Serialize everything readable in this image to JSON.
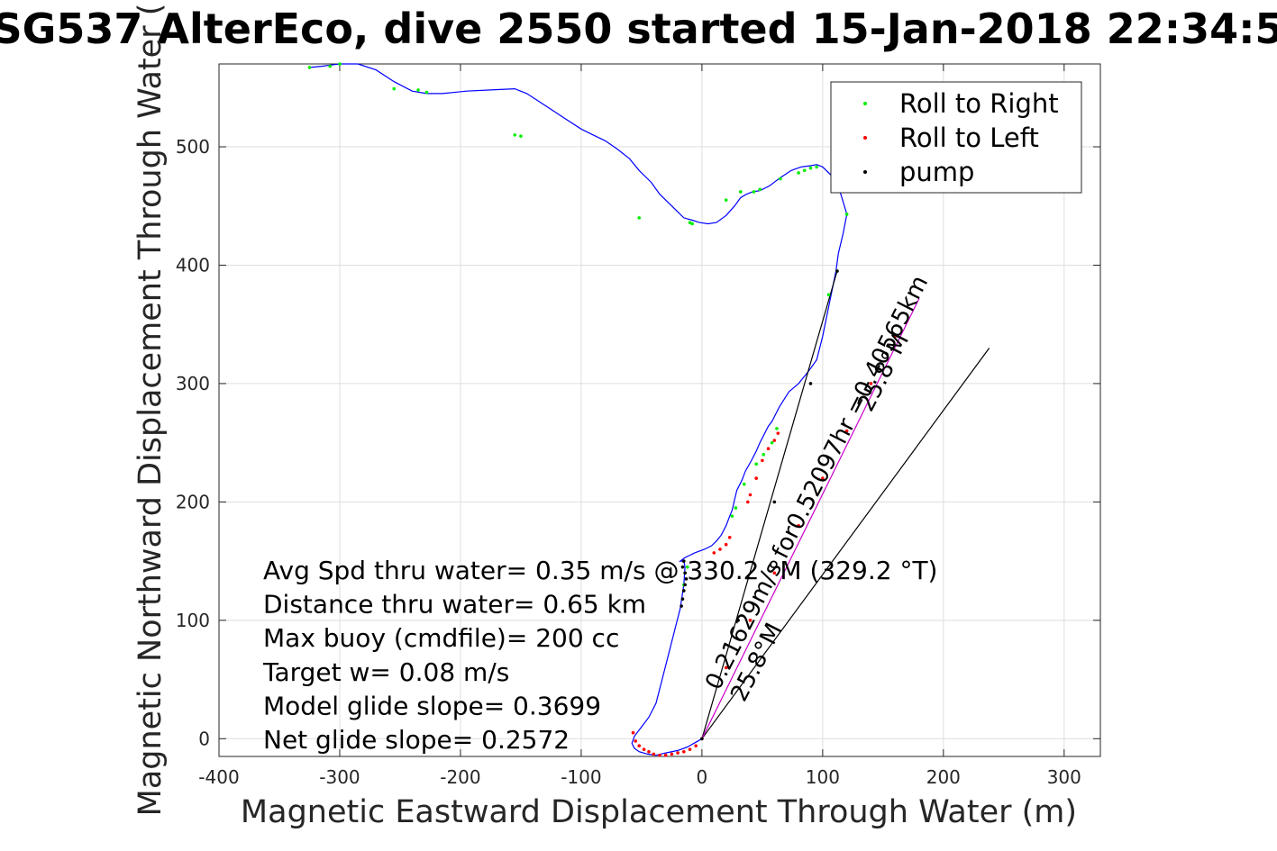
{
  "chart_data": {
    "type": "scatter",
    "title": "SG537 AlterEco, dive 2550 started 15-Jan-2018 22:34:5",
    "xlabel": "Magnetic Eastward Displacement Through Water (m)",
    "ylabel": "Magnetic Northward Displacement Through Water (",
    "xlim": [
      -400,
      330
    ],
    "ylim": [
      -15,
      570
    ],
    "xticks": [
      -400,
      -300,
      -200,
      -100,
      0,
      100,
      200,
      300
    ],
    "yticks": [
      0,
      100,
      200,
      300,
      400,
      500
    ],
    "xtick_labels": [
      "-400",
      "-300",
      "-200",
      "-100",
      "0",
      "100",
      "200",
      "300"
    ],
    "ytick_labels": [
      "0",
      "100",
      "200",
      "300",
      "400",
      "500"
    ],
    "grid": true,
    "legend": {
      "placement": "top-right",
      "entries": [
        {
          "label": "Roll to Right",
          "color": "#00ee00"
        },
        {
          "label": "Roll to Left",
          "color": "#ff0000"
        },
        {
          "label": "pump",
          "color": "#000000"
        }
      ]
    },
    "series": [
      {
        "name": "",
        "kind": "track",
        "color": "#0000ff",
        "x": [
          0,
          -5,
          -12,
          -20,
          -30,
          -38,
          -45,
          -52,
          -56,
          -58,
          -56,
          -50,
          -44,
          -38,
          -33,
          -28,
          -23,
          -18,
          -15,
          -14,
          -15,
          -18,
          -14,
          -6,
          2,
          8,
          12,
          16,
          20,
          23,
          25,
          26,
          27,
          29,
          33,
          36,
          41,
          45,
          48,
          51,
          53,
          55,
          58,
          61,
          64,
          72,
          80,
          88,
          95,
          100,
          104,
          108,
          111,
          113,
          117,
          120,
          115,
          108,
          100,
          95,
          90,
          82,
          74,
          65,
          56,
          48,
          42,
          37,
          32,
          27,
          20,
          12,
          5,
          -2,
          -8,
          -15,
          -20,
          -25,
          -30,
          -35,
          -42,
          -52,
          -60,
          -70,
          -80,
          -90,
          -100,
          -115,
          -130,
          -145,
          -155,
          -175,
          -195,
          -215,
          -228,
          -240,
          -255,
          -270,
          -285,
          -300,
          -308,
          -315,
          -325
        ],
        "y": [
          0,
          -3,
          -7,
          -10,
          -12,
          -14,
          -13,
          -11,
          -8,
          -4,
          2,
          10,
          18,
          30,
          50,
          70,
          90,
          110,
          130,
          145,
          150,
          150,
          153,
          157,
          160,
          163,
          167,
          172,
          180,
          188,
          193,
          197,
          202,
          210,
          218,
          226,
          235,
          243,
          250,
          256,
          260,
          264,
          268,
          274,
          280,
          293,
          300,
          310,
          320,
          340,
          360,
          380,
          395,
          410,
          427,
          443,
          460,
          475,
          483,
          485,
          484,
          483,
          480,
          474,
          467,
          463,
          462,
          460,
          457,
          450,
          442,
          436,
          435,
          436,
          438,
          440,
          445,
          450,
          455,
          460,
          470,
          480,
          490,
          498,
          505,
          510,
          515,
          525,
          535,
          545,
          549,
          548,
          547,
          545,
          545,
          547,
          555,
          565,
          570,
          570,
          569,
          568,
          567
        ]
      },
      {
        "name": "Roll to Right",
        "color": "#00ee00",
        "x": [
          -15,
          -14,
          -12,
          25,
          28,
          35,
          45,
          51,
          58,
          62,
          80,
          85,
          90,
          95,
          105,
          112,
          120,
          -325,
          -308,
          -300,
          -255,
          -235,
          -228,
          -155,
          -150,
          -52,
          -10,
          -8,
          20,
          32,
          43,
          48,
          65
        ],
        "y": [
          130,
          140,
          145,
          188,
          195,
          215,
          232,
          240,
          250,
          262,
          478,
          480,
          482,
          483,
          375,
          395,
          443,
          567,
          568,
          570,
          549,
          548,
          546,
          510,
          509,
          440,
          436,
          435,
          455,
          462,
          462,
          464,
          473
        ]
      },
      {
        "name": "Roll to Left",
        "color": "#ff0000",
        "x": [
          -57,
          -55,
          -52,
          -48,
          -44,
          -40,
          -35,
          -30,
          -25,
          -20,
          -15,
          -10,
          -5,
          0,
          10,
          15,
          20,
          23,
          38,
          40,
          45,
          50,
          55,
          60,
          63,
          20,
          40,
          60,
          80,
          100,
          120,
          140,
          160
        ],
        "y": [
          5,
          -2,
          -6,
          -9,
          -11,
          -13,
          -14,
          -14,
          -13,
          -12,
          -11,
          -9,
          -6,
          0,
          157,
          160,
          164,
          170,
          200,
          206,
          220,
          235,
          245,
          252,
          258,
          60,
          100,
          140,
          180,
          220,
          260,
          300,
          340
        ]
      },
      {
        "name": "pump",
        "color": "#000000",
        "x": [
          -17,
          -16,
          -15,
          -14,
          -13,
          -14,
          -16,
          -15,
          0,
          30,
          60,
          90,
          112
        ],
        "y": [
          112,
          118,
          125,
          130,
          135,
          140,
          145,
          150,
          0,
          100,
          200,
          300,
          395
        ]
      },
      {
        "name": "",
        "kind": "heading-line",
        "color": "#000000",
        "x": [
          0,
          112
        ],
        "y": [
          0,
          395
        ]
      },
      {
        "name": "",
        "kind": "heading-line",
        "color": "#000000",
        "x": [
          0,
          238
        ],
        "y": [
          0,
          330
        ]
      },
      {
        "name": "",
        "kind": "current-line",
        "color": "#cc00cc",
        "x": [
          0,
          180
        ],
        "y": [
          0,
          372
        ]
      }
    ],
    "annotations": [
      {
        "text": "Avg Spd thru water=  0.35 m/s @ 330.2 °M (329.2 °T)"
      },
      {
        "text": "Distance thru water=  0.65 km"
      },
      {
        "text": "Max buoy (cmdfile)= 200 cc"
      },
      {
        "text": "Target w= 0.08 m/s"
      },
      {
        "text": "Model glide slope= 0.3699"
      },
      {
        "text": "Net glide slope= 0.2572"
      }
    ],
    "rotated_labels": [
      {
        "text": "0.21629m/s for0.52097hr =0.40565km",
        "x": 14,
        "y": 40,
        "angle": -63
      },
      {
        "text": "25.8°M",
        "x": 140,
        "y": 275,
        "angle": -63
      },
      {
        "text": "25.8°M",
        "x": 35,
        "y": 30,
        "angle": -63
      }
    ]
  }
}
